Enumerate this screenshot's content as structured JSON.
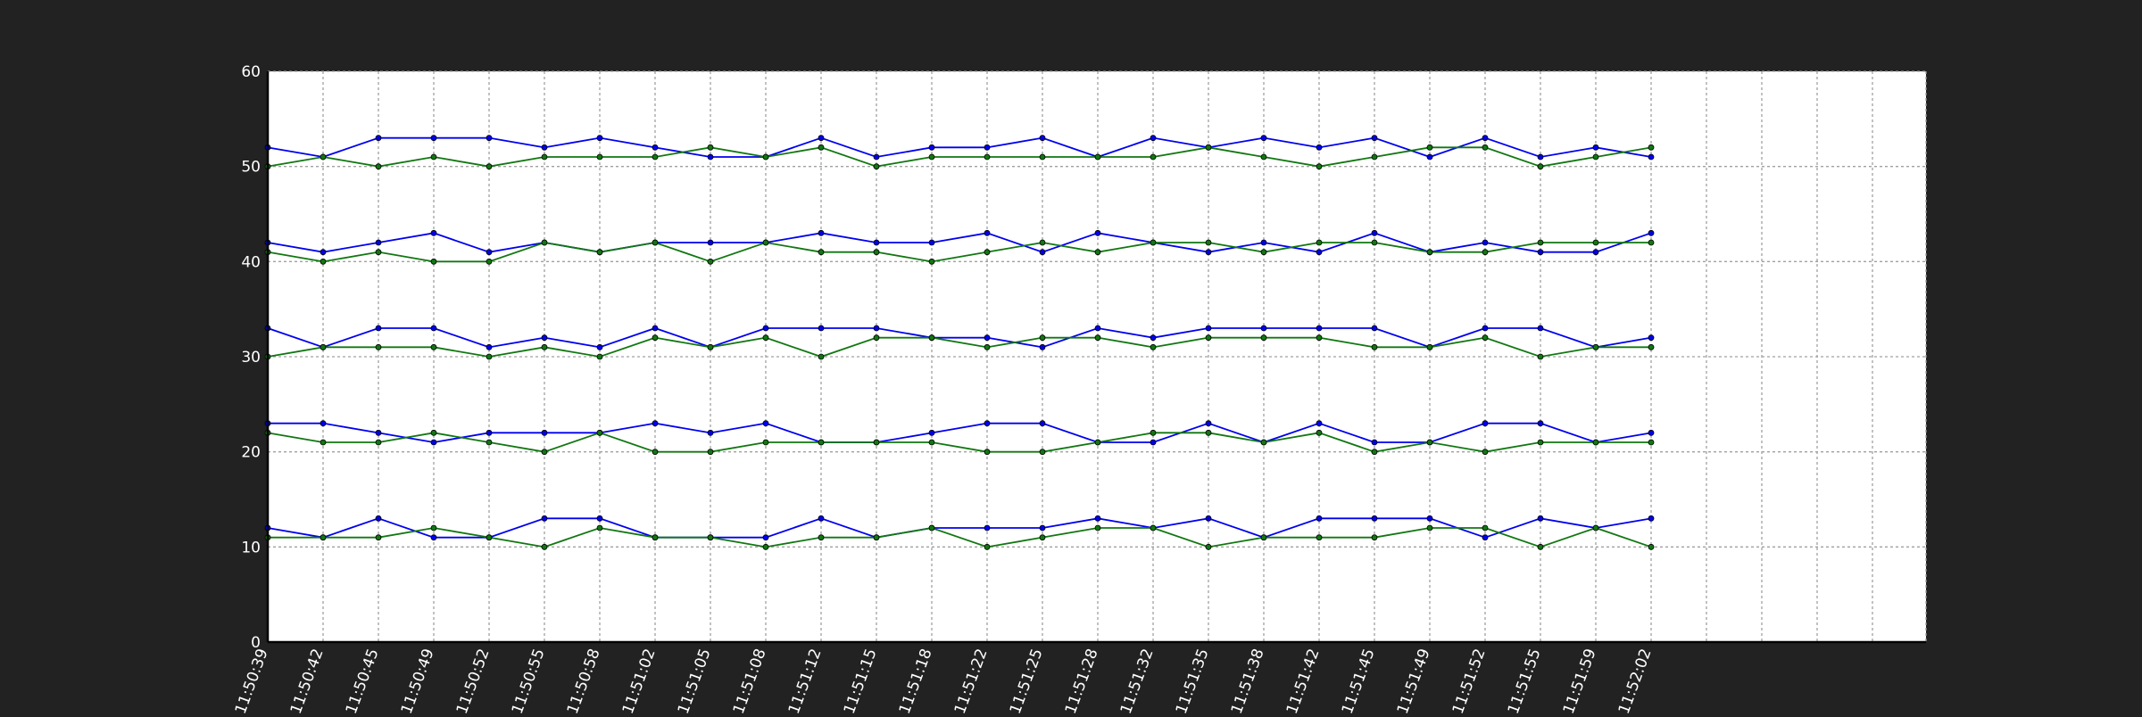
{
  "chart_data": {
    "type": "line",
    "title": "",
    "xlabel": "",
    "ylabel": "",
    "ylim": [
      0,
      60
    ],
    "yticks": [
      0,
      10,
      20,
      30,
      40,
      50,
      60
    ],
    "x_labels": [
      "11:50:39",
      "11:50:42",
      "11:50:45",
      "11:50:49",
      "11:50:52",
      "11:50:55",
      "11:50:58",
      "11:51:02",
      "11:51:05",
      "11:51:08",
      "11:51:12",
      "11:51:15",
      "11:51:18",
      "11:51:22",
      "11:51:25",
      "11:51:28",
      "11:51:32",
      "11:51:35",
      "11:51:38",
      "11:51:42",
      "11:51:45",
      "11:51:49",
      "11:51:52",
      "11:51:55",
      "11:51:59",
      "11:52:02"
    ],
    "x_grid_slots": 30,
    "grid": true,
    "legend": "none",
    "colors": {
      "blue": "#0000ee",
      "green": "#117711",
      "background": "#222222",
      "plot_bg": "#ffffff",
      "text": "#ffffff",
      "grid": "#a0a0a0"
    },
    "series": [
      {
        "color": "blue",
        "values": [
          12,
          11,
          13,
          11,
          11,
          13,
          13,
          11,
          11,
          11,
          13,
          11,
          12,
          12,
          12,
          13,
          12,
          13,
          11,
          13,
          13,
          13,
          11,
          13,
          12,
          13
        ]
      },
      {
        "color": "green",
        "values": [
          11,
          11,
          11,
          12,
          11,
          10,
          12,
          11,
          11,
          10,
          11,
          11,
          12,
          10,
          11,
          12,
          12,
          10,
          11,
          11,
          11,
          12,
          12,
          10,
          12,
          10
        ]
      },
      {
        "color": "blue",
        "values": [
          23,
          23,
          22,
          21,
          22,
          22,
          22,
          23,
          22,
          23,
          21,
          21,
          22,
          23,
          23,
          21,
          21,
          23,
          21,
          23,
          21,
          21,
          23,
          23,
          21,
          22
        ]
      },
      {
        "color": "green",
        "values": [
          22,
          21,
          21,
          22,
          21,
          20,
          22,
          20,
          20,
          21,
          21,
          21,
          21,
          20,
          20,
          21,
          22,
          22,
          21,
          22,
          20,
          21,
          20,
          21,
          21,
          21
        ]
      },
      {
        "color": "blue",
        "values": [
          33,
          31,
          33,
          33,
          31,
          32,
          31,
          33,
          31,
          33,
          33,
          33,
          32,
          32,
          31,
          33,
          32,
          33,
          33,
          33,
          33,
          31,
          33,
          33,
          31,
          32
        ]
      },
      {
        "color": "green",
        "values": [
          30,
          31,
          31,
          31,
          30,
          31,
          30,
          32,
          31,
          32,
          30,
          32,
          32,
          31,
          32,
          32,
          31,
          32,
          32,
          32,
          31,
          31,
          32,
          30,
          31,
          31
        ]
      },
      {
        "color": "blue",
        "values": [
          42,
          41,
          42,
          43,
          41,
          42,
          41,
          42,
          42,
          42,
          43,
          42,
          42,
          43,
          41,
          43,
          42,
          41,
          42,
          41,
          43,
          41,
          42,
          41,
          41,
          43
        ]
      },
      {
        "color": "green",
        "values": [
          41,
          40,
          41,
          40,
          40,
          42,
          41,
          42,
          40,
          42,
          41,
          41,
          40,
          41,
          42,
          41,
          42,
          42,
          41,
          42,
          42,
          41,
          41,
          42,
          42,
          42
        ]
      },
      {
        "color": "blue",
        "values": [
          52,
          51,
          53,
          53,
          53,
          52,
          53,
          52,
          51,
          51,
          53,
          51,
          52,
          52,
          53,
          51,
          53,
          52,
          53,
          52,
          53,
          51,
          53,
          51,
          52,
          51
        ]
      },
      {
        "color": "green",
        "values": [
          50,
          51,
          50,
          51,
          50,
          51,
          51,
          51,
          52,
          51,
          52,
          50,
          51,
          51,
          51,
          51,
          51,
          52,
          51,
          50,
          51,
          52,
          52,
          50,
          51,
          52
        ]
      }
    ]
  }
}
